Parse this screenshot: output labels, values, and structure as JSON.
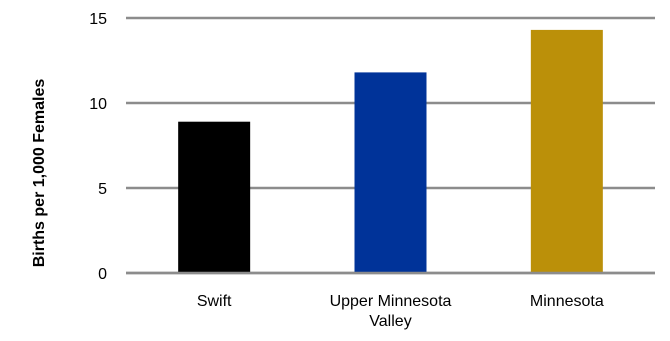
{
  "chart_data": {
    "type": "bar",
    "title": "",
    "xlabel": "",
    "ylabel": "Births per 1,000 Females",
    "categories": [
      [
        "Swift"
      ],
      [
        "Upper Minnesota",
        "Valley"
      ],
      [
        "Minnesota"
      ]
    ],
    "values": [
      8.9,
      11.8,
      14.3
    ],
    "bar_colors": [
      "#000000",
      "#003399",
      "#BB9009"
    ],
    "ylim": [
      0,
      15
    ],
    "yticks": [
      0,
      5,
      10,
      15
    ],
    "grid": true,
    "legend": "none"
  }
}
